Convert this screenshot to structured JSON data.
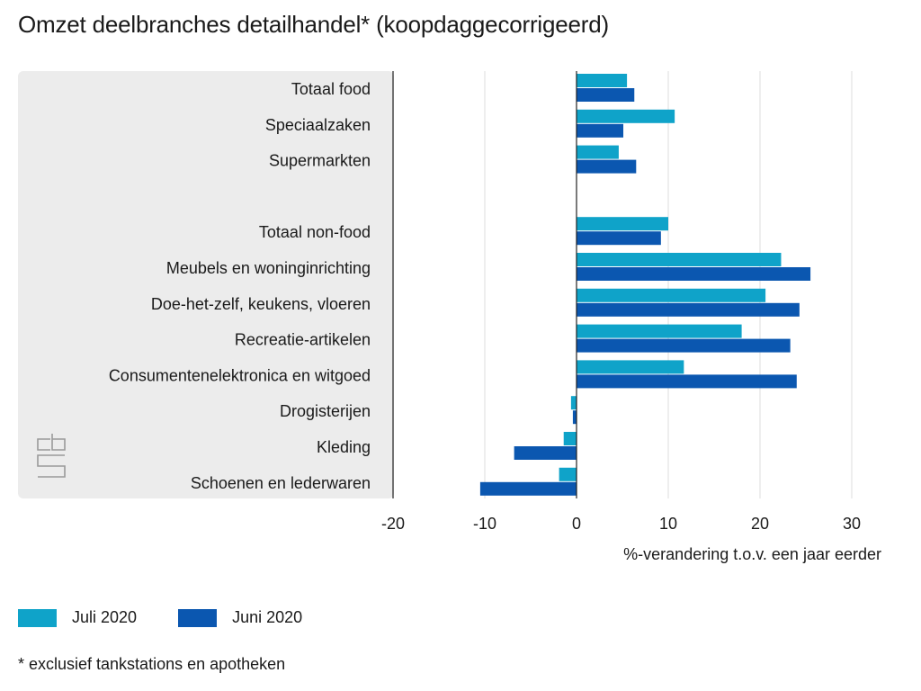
{
  "title": "Omzet deelbranches detailhandel* (koopdaggecorrigeerd)",
  "footnote": "* exclusief tankstations en apotheken",
  "logo_text": "cbs",
  "colors": {
    "juli": "#0fa3c9",
    "juni": "#0b57b0",
    "panel": "#ececec",
    "grid": "#dcdcdc",
    "axis": "#222222"
  },
  "chart_data": {
    "type": "bar",
    "orientation": "horizontal",
    "title": "Omzet deelbranches detailhandel* (koopdaggecorrigeerd)",
    "xlabel": "%-verandering t.o.v. een jaar eerder",
    "xlim": [
      -20,
      30
    ],
    "xticks": [
      "-20",
      "-10",
      "0",
      "10",
      "20",
      "30"
    ],
    "xtick_values": [
      -20,
      -10,
      0,
      10,
      20,
      30
    ],
    "grid": true,
    "legend": "bottom-left",
    "categories": [
      "Totaal food",
      "Speciaalzaken",
      "Supermarkten",
      "",
      "Totaal non-food",
      "Meubels en woninginrichting",
      "Doe-het-zelf, keukens, vloeren",
      "Recreatie-artikelen",
      "Consumentenelektronica en witgoed",
      "Drogisterijen",
      "Kleding",
      "Schoenen en lederwaren"
    ],
    "series": [
      {
        "name": "Juli 2020",
        "color": "#0fa3c9",
        "values": [
          5.5,
          10.7,
          4.6,
          null,
          10.0,
          22.3,
          20.6,
          18.0,
          11.7,
          -0.6,
          -1.4,
          -1.9
        ]
      },
      {
        "name": "Juni 2020",
        "color": "#0b57b0",
        "values": [
          6.3,
          5.1,
          6.5,
          null,
          9.2,
          25.5,
          24.3,
          23.3,
          24.0,
          -0.4,
          -6.8,
          -10.5
        ]
      }
    ]
  }
}
